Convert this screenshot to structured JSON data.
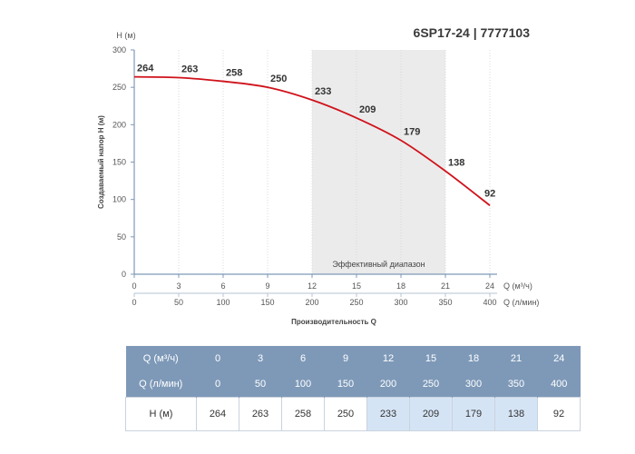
{
  "model_title": "6SP17-24 | 7777103",
  "chart_data": {
    "type": "line",
    "title": "6SP17-24 | 7777103",
    "ylabel": "Создаваемый напор H (м)",
    "yunit": "H (м)",
    "xlabel": "Производительность Q",
    "xunit_primary": "Q (м³/ч)",
    "xunit_secondary": "Q (л/мин)",
    "ylim": [
      0,
      300
    ],
    "yticks": [
      0,
      50,
      100,
      150,
      200,
      250,
      300
    ],
    "xlim": [
      0,
      24
    ],
    "xticks": [
      0,
      3,
      6,
      9,
      12,
      15,
      18,
      21,
      24
    ],
    "xticks_secondary": [
      0,
      50,
      100,
      150,
      200,
      250,
      300,
      350,
      400
    ],
    "grid": "vertical",
    "series": [
      {
        "x": [
          0,
          3,
          6,
          9,
          12,
          15,
          18,
          21,
          24
        ],
        "values": [
          264,
          263,
          258,
          250,
          233,
          209,
          179,
          138,
          92
        ],
        "color": "#d0121b"
      }
    ],
    "efficient_range": {
      "x_from": 12,
      "x_to": 21,
      "label": "Эффективный диапазон"
    }
  },
  "table": {
    "rows": [
      {
        "label": "Q (м³/ч)",
        "values": [
          "0",
          "3",
          "6",
          "9",
          "12",
          "15",
          "18",
          "21",
          "24"
        ]
      },
      {
        "label": "Q (л/мин)",
        "values": [
          "0",
          "50",
          "100",
          "150",
          "200",
          "250",
          "300",
          "350",
          "400"
        ]
      },
      {
        "label": "H (м)",
        "values": [
          "264",
          "263",
          "258",
          "250",
          "233",
          "209",
          "179",
          "138",
          "92"
        ]
      }
    ],
    "highlight_columns": [
      4,
      5,
      6,
      7
    ]
  }
}
